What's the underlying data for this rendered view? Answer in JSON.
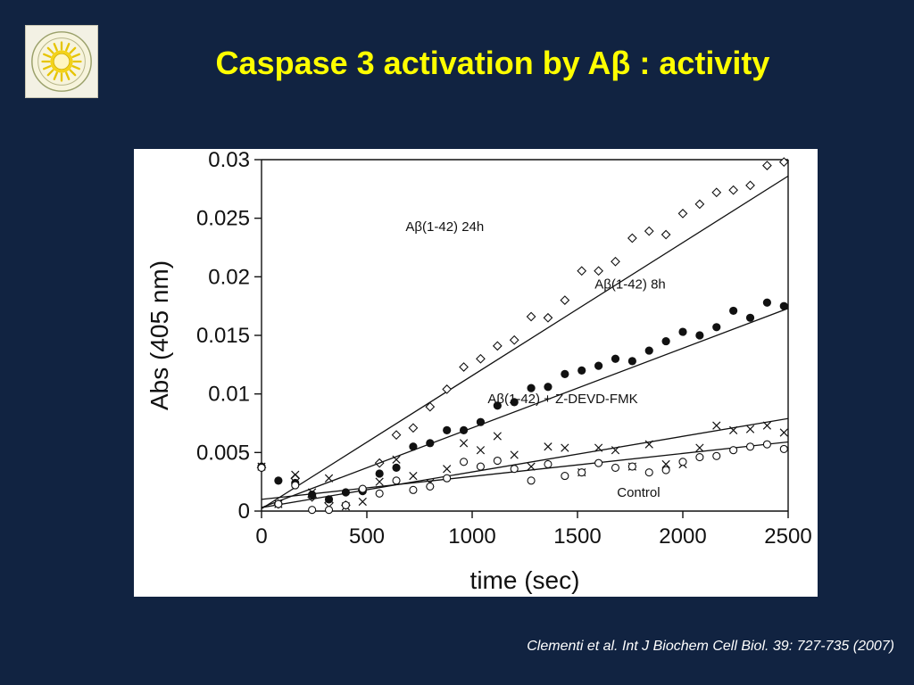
{
  "slide": {
    "title": "Caspase 3 activation by Aβ : activity",
    "citation": "Clementi et al. Int J Biochem Cell Biol. 39: 727-735 (2007)"
  },
  "logo": {
    "icon": "university-seal-icon"
  },
  "colors": {
    "background": "#112341",
    "title": "#ffff00",
    "citation": "#ffffff",
    "plot_ink": "#111111"
  },
  "chart_data": {
    "type": "scatter",
    "xlabel": "time (sec)",
    "ylabel": "Abs (405 nm)",
    "xlim": [
      0,
      2500
    ],
    "ylim": [
      0,
      0.03
    ],
    "x_ticks": [
      "0",
      "500",
      "1000",
      "1500",
      "2000",
      "2500"
    ],
    "y_ticks": [
      "0",
      "0.005",
      "0.01",
      "0.015",
      "0.02",
      "0.025",
      "0.03"
    ],
    "grid": false,
    "series": [
      {
        "name": "Aβ(1-42) 24h",
        "marker": "open-diamond",
        "fit": [
          [
            0,
            0.0002
          ],
          [
            2500,
            0.0286
          ]
        ],
        "x": [
          0,
          80,
          160,
          240,
          320,
          400,
          480,
          560,
          640,
          720,
          800,
          880,
          960,
          1040,
          1120,
          1200,
          1280,
          1360,
          1440,
          1520,
          1600,
          1680,
          1760,
          1840,
          1920,
          2000,
          2080,
          2160,
          2240,
          2320,
          2400,
          2480
        ],
        "y": [
          0.0037,
          0.0006,
          0.0028,
          0.0012,
          0.0007,
          0.0005,
          0.0018,
          0.0041,
          0.0065,
          0.0071,
          0.0089,
          0.0104,
          0.0123,
          0.013,
          0.0141,
          0.0146,
          0.0166,
          0.0165,
          0.018,
          0.0205,
          0.0205,
          0.0213,
          0.0233,
          0.0239,
          0.0236,
          0.0254,
          0.0262,
          0.0272,
          0.0274,
          0.0278,
          0.0295,
          0.0298
        ]
      },
      {
        "name": "Aβ(1-42) 8h",
        "marker": "filled-circle",
        "fit": [
          [
            0,
            0.0003
          ],
          [
            2500,
            0.0173
          ]
        ],
        "x": [
          0,
          80,
          160,
          240,
          320,
          400,
          480,
          560,
          640,
          720,
          800,
          880,
          960,
          1040,
          1120,
          1200,
          1280,
          1360,
          1440,
          1520,
          1600,
          1680,
          1760,
          1840,
          1920,
          2000,
          2080,
          2160,
          2240,
          2320,
          2400,
          2480
        ],
        "y": [
          0.0038,
          0.0026,
          0.0024,
          0.0014,
          0.001,
          0.0016,
          0.0017,
          0.0032,
          0.0037,
          0.0055,
          0.0058,
          0.0069,
          0.0069,
          0.0076,
          0.009,
          0.0093,
          0.0105,
          0.0106,
          0.0117,
          0.012,
          0.0124,
          0.013,
          0.0128,
          0.0137,
          0.0145,
          0.0153,
          0.015,
          0.0157,
          0.0171,
          0.0165,
          0.0178,
          0.0175
        ]
      },
      {
        "name": "Aβ(1-42) + Z-DEVD-FMK",
        "marker": "cross",
        "fit": [
          [
            0,
            0.0003
          ],
          [
            2500,
            0.0079
          ]
        ],
        "x": [
          0,
          80,
          160,
          240,
          320,
          400,
          480,
          560,
          640,
          720,
          800,
          880,
          960,
          1040,
          1120,
          1200,
          1280,
          1360,
          1440,
          1520,
          1600,
          1680,
          1760,
          1840,
          1920,
          2000,
          2080,
          2160,
          2240,
          2320,
          2400,
          2480
        ],
        "y": [
          0.0038,
          0.0006,
          0.0031,
          0.0016,
          0.0028,
          0.0004,
          0.0008,
          0.0025,
          0.0044,
          0.003,
          0.0024,
          0.0036,
          0.0058,
          0.0052,
          0.0064,
          0.0048,
          0.0038,
          0.0055,
          0.0054,
          0.0033,
          0.0054,
          0.0052,
          0.0038,
          0.0057,
          0.004,
          0.004,
          0.0054,
          0.0073,
          0.0069,
          0.007,
          0.0073,
          0.0067
        ]
      },
      {
        "name": "Control",
        "marker": "open-circle",
        "fit": [
          [
            0,
            0.001
          ],
          [
            2500,
            0.0059
          ]
        ],
        "x": [
          0,
          80,
          160,
          240,
          320,
          400,
          480,
          560,
          640,
          720,
          800,
          880,
          960,
          1040,
          1120,
          1200,
          1280,
          1360,
          1440,
          1520,
          1600,
          1680,
          1760,
          1840,
          1920,
          2000,
          2080,
          2160,
          2240,
          2320,
          2400,
          2480
        ],
        "y": [
          0.0037,
          0.0006,
          0.0022,
          0.0001,
          0.0001,
          0.0005,
          0.0019,
          0.0015,
          0.0026,
          0.0018,
          0.0021,
          0.0028,
          0.0042,
          0.0038,
          0.0043,
          0.0036,
          0.0026,
          0.004,
          0.003,
          0.0033,
          0.0041,
          0.0037,
          0.0038,
          0.0033,
          0.0035,
          0.0042,
          0.0046,
          0.0047,
          0.0052,
          0.0055,
          0.0057,
          0.0053
        ]
      }
    ],
    "annotations": [
      {
        "text": "Aβ(1-42) 24h",
        "x": 870,
        "y": 0.0239
      },
      {
        "text": "Aβ(1-42) 8h",
        "x": 1750,
        "y": 0.019
      },
      {
        "text": "Aβ(1-42) + Z-DEVD-FMK",
        "x": 1430,
        "y": 0.0092
      },
      {
        "text": "Control",
        "x": 1790,
        "y": 0.0012
      }
    ]
  }
}
